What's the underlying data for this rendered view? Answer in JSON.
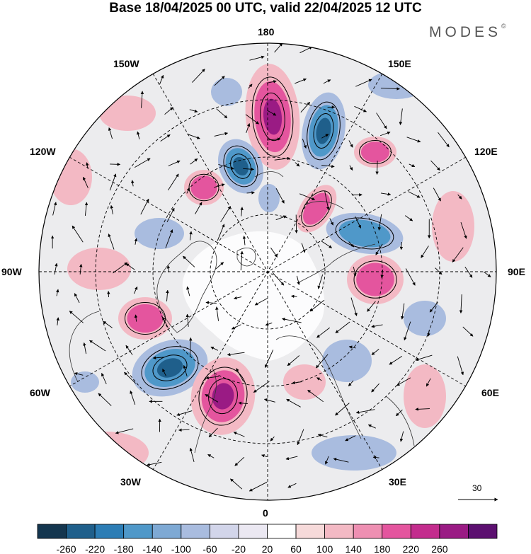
{
  "title": "Base 18/04/2025 00 UTC, valid 22/04/2025 12 UTC",
  "brand": "MODES",
  "brand_mark": "©",
  "longitude_labels": {
    "n": "180",
    "s": "0",
    "w": "90W",
    "e": "90E",
    "nw1": "150W",
    "nw2": "120W",
    "ne1": "150E",
    "ne2": "120E",
    "sw1": "60W",
    "sw2": "30W",
    "se1": "60E",
    "se2": "30E"
  },
  "vector_scale": {
    "label": "30"
  },
  "colorbar": {
    "colors": [
      "#14364f",
      "#1f5f8b",
      "#2c7db5",
      "#4f98c9",
      "#7ea9d4",
      "#a9bcdf",
      "#d2d5ea",
      "#ebe8f2",
      "#ffffff",
      "#f6dada",
      "#f3b9c4",
      "#ee8fb2",
      "#e4559e",
      "#c32c8d",
      "#9a1b84",
      "#5c1070"
    ],
    "labels": [
      "-260",
      "-220",
      "-180",
      "-140",
      "-100",
      "-60",
      "-20",
      "20",
      "60",
      "100",
      "140",
      "180",
      "220",
      "260"
    ]
  },
  "anomaly_colors": {
    "neg_strong": "#1f5f8b",
    "neg_mid": "#4f98c9",
    "neg_weak": "#a9bcdf",
    "pos_weak": "#f3b9c4",
    "pos_mid": "#e4559e",
    "pos_strong": "#9a1b84",
    "neutral": "#ececee"
  }
}
